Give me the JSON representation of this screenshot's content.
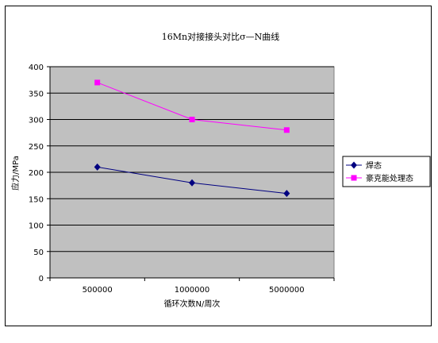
{
  "chart_data": {
    "type": "line",
    "title": "16Mn对接接头对比σ—N曲线",
    "xlabel": "循环次数N/周次",
    "ylabel": "应力/MPa",
    "categories": [
      "500000",
      "1000000",
      "5000000"
    ],
    "ylim": [
      0,
      400
    ],
    "yticks": [
      0,
      50,
      100,
      150,
      200,
      250,
      300,
      350,
      400
    ],
    "grid": true,
    "legend_position": "right",
    "plot_background": "#c0c0c0",
    "series": [
      {
        "name": "焊态",
        "values": [
          210,
          180,
          160
        ],
        "color": "#000080",
        "marker": "diamond"
      },
      {
        "name": "豪克能处理态",
        "values": [
          370,
          300,
          280
        ],
        "color": "#ff00ff",
        "marker": "square"
      }
    ]
  }
}
